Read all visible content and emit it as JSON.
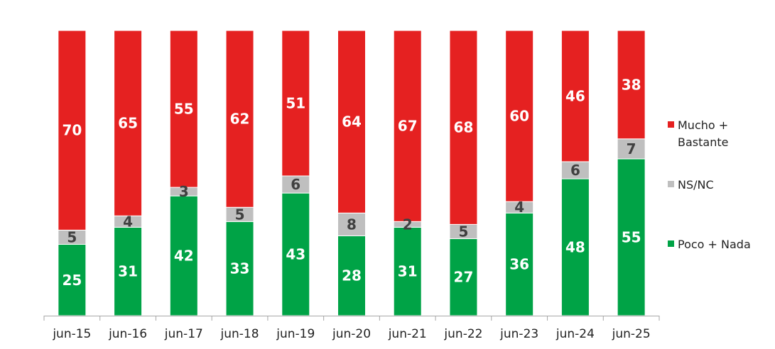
{
  "chart_data": {
    "type": "bar",
    "stacked": true,
    "normalized_to": 100,
    "categories": [
      "jun-15",
      "jun-16",
      "jun-17",
      "jun-18",
      "jun-19",
      "jun-20",
      "jun-21",
      "jun-22",
      "jun-23",
      "jun-24",
      "jun-25"
    ],
    "series": [
      {
        "name": "Poco + Nada",
        "color": "#00A346",
        "label_color": "#ffffff",
        "values": [
          25,
          31,
          42,
          33,
          43,
          28,
          31,
          27,
          36,
          48,
          55
        ]
      },
      {
        "name": "NS/NC",
        "color": "#BFBFBF",
        "label_color": "#404040",
        "values": [
          5,
          4,
          3,
          5,
          6,
          8,
          2,
          5,
          4,
          6,
          7
        ]
      },
      {
        "name": "Mucho + Bastante",
        "color": "#E52121",
        "label_color": "#ffffff",
        "values": [
          70,
          65,
          55,
          62,
          51,
          64,
          67,
          68,
          60,
          46,
          38
        ]
      }
    ],
    "legend": {
      "position": "right",
      "order": [
        "Mucho + Bastante",
        "NS/NC",
        "Poco + Nada"
      ],
      "lines": [
        [
          "Mucho +",
          "Bastante"
        ],
        [
          "NS/NC"
        ],
        [
          "Poco + Nada"
        ]
      ]
    },
    "title": "",
    "xlabel": "",
    "ylabel": "",
    "ylim": [
      0,
      100
    ],
    "grid": false,
    "data_labels": true
  }
}
